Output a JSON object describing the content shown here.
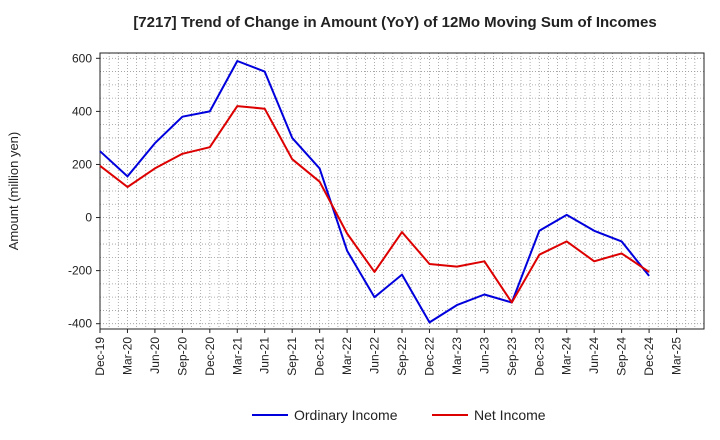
{
  "chart_data": {
    "type": "line",
    "title": "[7217]  Trend of Change in Amount (YoY) of 12Mo Moving Sum of Incomes",
    "ylabel": "Amount (million yen)",
    "xlabel": "",
    "ylim": [
      -420,
      620
    ],
    "yticks": [
      -400,
      -200,
      0,
      200,
      400,
      600
    ],
    "x_tick_labels": [
      "Dec-19",
      "Mar-20",
      "Jun-20",
      "Sep-20",
      "Dec-20",
      "Mar-21",
      "Jun-21",
      "Sep-21",
      "Dec-21",
      "Mar-22",
      "Jun-22",
      "Sep-22",
      "Dec-22",
      "Mar-23",
      "Jun-23",
      "Sep-23",
      "Dec-23",
      "Mar-24",
      "Jun-24",
      "Sep-24",
      "Dec-24",
      "Mar-25"
    ],
    "grid": true,
    "legend_position": "bottom-center",
    "series": [
      {
        "name": "Ordinary Income",
        "color": "#0000dd",
        "values": [
          250,
          155,
          280,
          380,
          400,
          590,
          550,
          300,
          185,
          -125,
          -300,
          -215,
          -395,
          -330,
          -290,
          -320,
          -50,
          10,
          -50,
          -90,
          -220
        ]
      },
      {
        "name": "Net Income",
        "color": "#dd0000",
        "values": [
          195,
          115,
          185,
          240,
          265,
          420,
          410,
          220,
          135,
          -60,
          -205,
          -55,
          -175,
          -185,
          -165,
          -320,
          -140,
          -90,
          -165,
          -135,
          -205
        ]
      }
    ]
  }
}
